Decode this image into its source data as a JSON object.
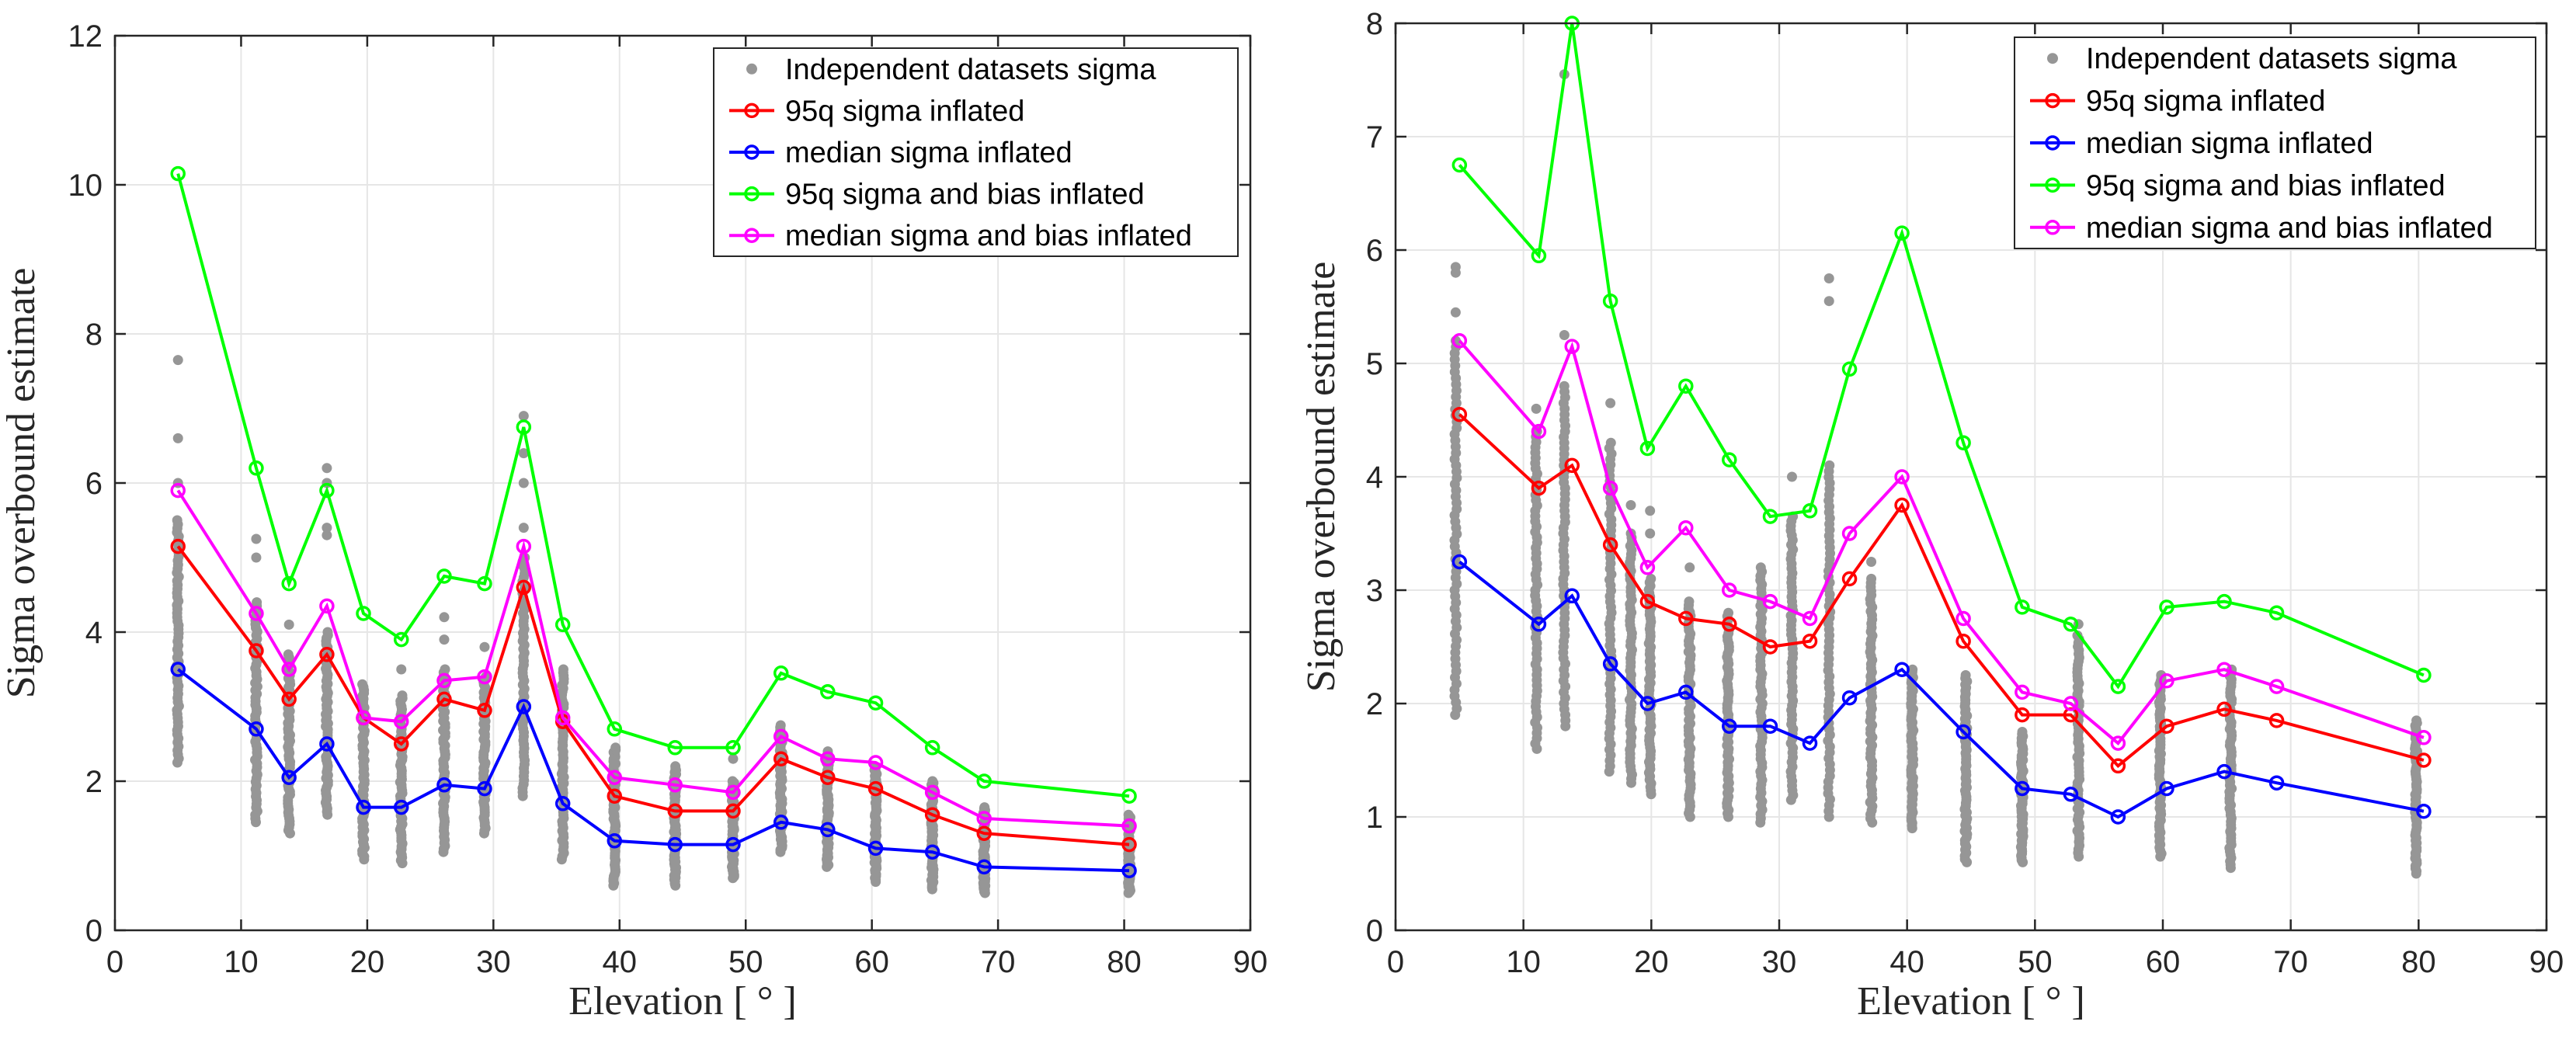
{
  "chart_data": [
    {
      "type": "line",
      "panel": "left",
      "title": "",
      "xlabel": "Elevation [ ° ]",
      "ylabel": "Sigma overbound estimate",
      "xlim": [
        0,
        90
      ],
      "ylim": [
        0,
        12
      ],
      "xticks": [
        "0",
        "10",
        "20",
        "30",
        "40",
        "50",
        "60",
        "70",
        "80",
        "90"
      ],
      "yticks": [
        "0",
        "2",
        "4",
        "6",
        "8",
        "10",
        "12"
      ],
      "grid": true,
      "legend_position": "top-right",
      "scatter": {
        "name": "Independent datasets sigma",
        "color": "#969696",
        "columns": [
          {
            "x": 5,
            "min": 2.25,
            "max": 5.5,
            "outliers": [
              6.0,
              6.6,
              7.65
            ]
          },
          {
            "x": 11.2,
            "min": 1.45,
            "max": 4.4,
            "outliers": [
              5.0,
              5.25
            ]
          },
          {
            "x": 13.8,
            "min": 1.3,
            "max": 3.7,
            "outliers": [
              4.1
            ]
          },
          {
            "x": 16.8,
            "min": 1.55,
            "max": 4.0,
            "outliers": [
              5.3,
              5.4,
              6.0,
              6.2
            ]
          },
          {
            "x": 19.7,
            "min": 0.95,
            "max": 3.3
          },
          {
            "x": 22.7,
            "min": 0.9,
            "max": 3.15,
            "outliers": [
              3.5
            ]
          },
          {
            "x": 26.1,
            "min": 1.05,
            "max": 3.5,
            "outliers": [
              3.9,
              4.2
            ]
          },
          {
            "x": 29.3,
            "min": 1.3,
            "max": 3.4,
            "outliers": [
              3.8
            ]
          },
          {
            "x": 32.4,
            "min": 1.8,
            "max": 5.0,
            "outliers": [
              5.4,
              6.0,
              6.4,
              6.9
            ]
          },
          {
            "x": 35.5,
            "min": 0.95,
            "max": 3.5
          },
          {
            "x": 39.6,
            "min": 0.6,
            "max": 2.45
          },
          {
            "x": 44.4,
            "min": 0.6,
            "max": 2.2
          },
          {
            "x": 49.0,
            "min": 0.7,
            "max": 2.0,
            "outliers": [
              2.3
            ]
          },
          {
            "x": 52.8,
            "min": 1.05,
            "max": 2.75
          },
          {
            "x": 56.5,
            "min": 0.85,
            "max": 2.4
          },
          {
            "x": 60.3,
            "min": 0.65,
            "max": 2.2
          },
          {
            "x": 64.8,
            "min": 0.55,
            "max": 2.0
          },
          {
            "x": 68.9,
            "min": 0.5,
            "max": 1.65
          },
          {
            "x": 80.4,
            "min": 0.5,
            "max": 1.55
          }
        ]
      },
      "x": [
        5,
        11.2,
        13.8,
        16.8,
        19.7,
        22.7,
        26.1,
        29.3,
        32.4,
        35.5,
        39.6,
        44.4,
        49.0,
        52.8,
        56.5,
        60.3,
        64.8,
        68.9,
        80.4
      ],
      "series": [
        {
          "name": "95q sigma inflated",
          "color": "#ff0000",
          "values": [
            5.15,
            3.75,
            3.1,
            3.7,
            2.85,
            2.5,
            3.1,
            2.95,
            4.6,
            2.8,
            1.8,
            1.6,
            1.6,
            2.3,
            2.05,
            1.9,
            1.55,
            1.3,
            1.15
          ]
        },
        {
          "name": "median sigma inflated",
          "color": "#0000ff",
          "values": [
            3.5,
            2.7,
            2.05,
            2.5,
            1.65,
            1.65,
            1.95,
            1.9,
            3.0,
            1.7,
            1.2,
            1.15,
            1.15,
            1.45,
            1.35,
            1.1,
            1.05,
            0.85,
            0.8
          ]
        },
        {
          "name": "95q sigma and bias inflated",
          "color": "#00ff00",
          "values": [
            10.15,
            6.2,
            4.65,
            5.9,
            4.25,
            3.9,
            4.75,
            4.65,
            6.75,
            4.1,
            2.7,
            2.45,
            2.45,
            3.45,
            3.2,
            3.05,
            2.45,
            2.0,
            1.8
          ]
        },
        {
          "name": "median sigma and bias inflated",
          "color": "#ff00ff",
          "values": [
            5.9,
            4.25,
            3.5,
            4.35,
            2.85,
            2.8,
            3.35,
            3.4,
            5.15,
            2.85,
            2.05,
            1.95,
            1.85,
            2.6,
            2.3,
            2.25,
            1.85,
            1.5,
            1.4
          ]
        }
      ]
    },
    {
      "type": "line",
      "panel": "right",
      "title": "",
      "xlabel": "Elevation [ ° ]",
      "ylabel": "Sigma overbound estimate",
      "xlim": [
        0,
        90
      ],
      "ylim": [
        0,
        8
      ],
      "xticks": [
        "0",
        "10",
        "20",
        "30",
        "40",
        "50",
        "60",
        "70",
        "80",
        "90"
      ],
      "yticks": [
        "0",
        "1",
        "2",
        "3",
        "4",
        "5",
        "6",
        "7",
        "8"
      ],
      "grid": true,
      "legend_position": "top-right",
      "scatter": {
        "name": "Independent datasets sigma",
        "color": "#969696",
        "columns": [
          {
            "x": 4.7,
            "min": 1.9,
            "max": 5.2,
            "outliers": [
              5.45,
              5.8,
              5.85
            ]
          },
          {
            "x": 11.0,
            "min": 1.6,
            "max": 4.4,
            "outliers": [
              4.6
            ]
          },
          {
            "x": 13.2,
            "min": 1.8,
            "max": 4.8,
            "outliers": [
              5.25,
              7.55
            ]
          },
          {
            "x": 16.8,
            "min": 1.4,
            "max": 4.3,
            "outliers": [
              4.65
            ]
          },
          {
            "x": 18.4,
            "min": 1.3,
            "max": 3.5,
            "outliers": [
              3.75
            ]
          },
          {
            "x": 19.9,
            "min": 1.2,
            "max": 3.1,
            "outliers": [
              3.5,
              3.7
            ]
          },
          {
            "x": 23.0,
            "min": 1.0,
            "max": 2.9,
            "outliers": [
              3.2
            ]
          },
          {
            "x": 26.0,
            "min": 1.0,
            "max": 2.8
          },
          {
            "x": 28.6,
            "min": 0.95,
            "max": 3.2
          },
          {
            "x": 31.0,
            "min": 1.15,
            "max": 3.65,
            "outliers": [
              4.0
            ]
          },
          {
            "x": 33.9,
            "min": 1.0,
            "max": 4.1,
            "outliers": [
              5.55,
              5.75
            ]
          },
          {
            "x": 37.2,
            "min": 0.95,
            "max": 3.1,
            "outliers": [
              3.25
            ]
          },
          {
            "x": 40.4,
            "min": 0.9,
            "max": 2.3
          },
          {
            "x": 44.6,
            "min": 0.6,
            "max": 2.25
          },
          {
            "x": 49.0,
            "min": 0.6,
            "max": 1.75
          },
          {
            "x": 53.4,
            "min": 0.65,
            "max": 2.6,
            "outliers": [
              2.7
            ]
          },
          {
            "x": 59.8,
            "min": 0.65,
            "max": 2.25
          },
          {
            "x": 65.3,
            "min": 0.55,
            "max": 2.3
          },
          {
            "x": 79.8,
            "min": 0.5,
            "max": 1.85
          }
        ]
      },
      "x": [
        5,
        11.2,
        13.8,
        16.8,
        19.7,
        22.7,
        26.1,
        29.3,
        32.4,
        35.5,
        39.6,
        44.4,
        49.0,
        52.8,
        56.5,
        60.3,
        64.8,
        68.9,
        80.4
      ],
      "series": [
        {
          "name": "95q sigma inflated",
          "color": "#ff0000",
          "values": [
            4.55,
            3.9,
            4.1,
            3.4,
            2.9,
            2.75,
            2.7,
            2.5,
            2.55,
            3.1,
            3.75,
            2.55,
            1.9,
            1.9,
            1.45,
            1.8,
            1.95,
            1.85,
            1.5
          ]
        },
        {
          "name": "median sigma inflated",
          "color": "#0000ff",
          "values": [
            3.25,
            2.7,
            2.95,
            2.35,
            2.0,
            2.1,
            1.8,
            1.8,
            1.65,
            2.05,
            2.3,
            1.75,
            1.25,
            1.2,
            1.0,
            1.25,
            1.4,
            1.3,
            1.05
          ]
        },
        {
          "name": "95q sigma and bias inflated",
          "color": "#00ff00",
          "values": [
            6.75,
            5.95,
            8.0,
            5.55,
            4.25,
            4.8,
            4.15,
            3.65,
            3.7,
            4.95,
            6.15,
            4.3,
            2.85,
            2.7,
            2.15,
            2.85,
            2.9,
            2.8,
            2.25
          ]
        },
        {
          "name": "median sigma and bias inflated",
          "color": "#ff00ff",
          "values": [
            5.2,
            4.4,
            5.15,
            3.9,
            3.2,
            3.55,
            3.0,
            2.9,
            2.75,
            3.5,
            4.0,
            2.75,
            2.1,
            2.0,
            1.65,
            2.2,
            2.3,
            2.15,
            1.7
          ]
        }
      ]
    }
  ]
}
